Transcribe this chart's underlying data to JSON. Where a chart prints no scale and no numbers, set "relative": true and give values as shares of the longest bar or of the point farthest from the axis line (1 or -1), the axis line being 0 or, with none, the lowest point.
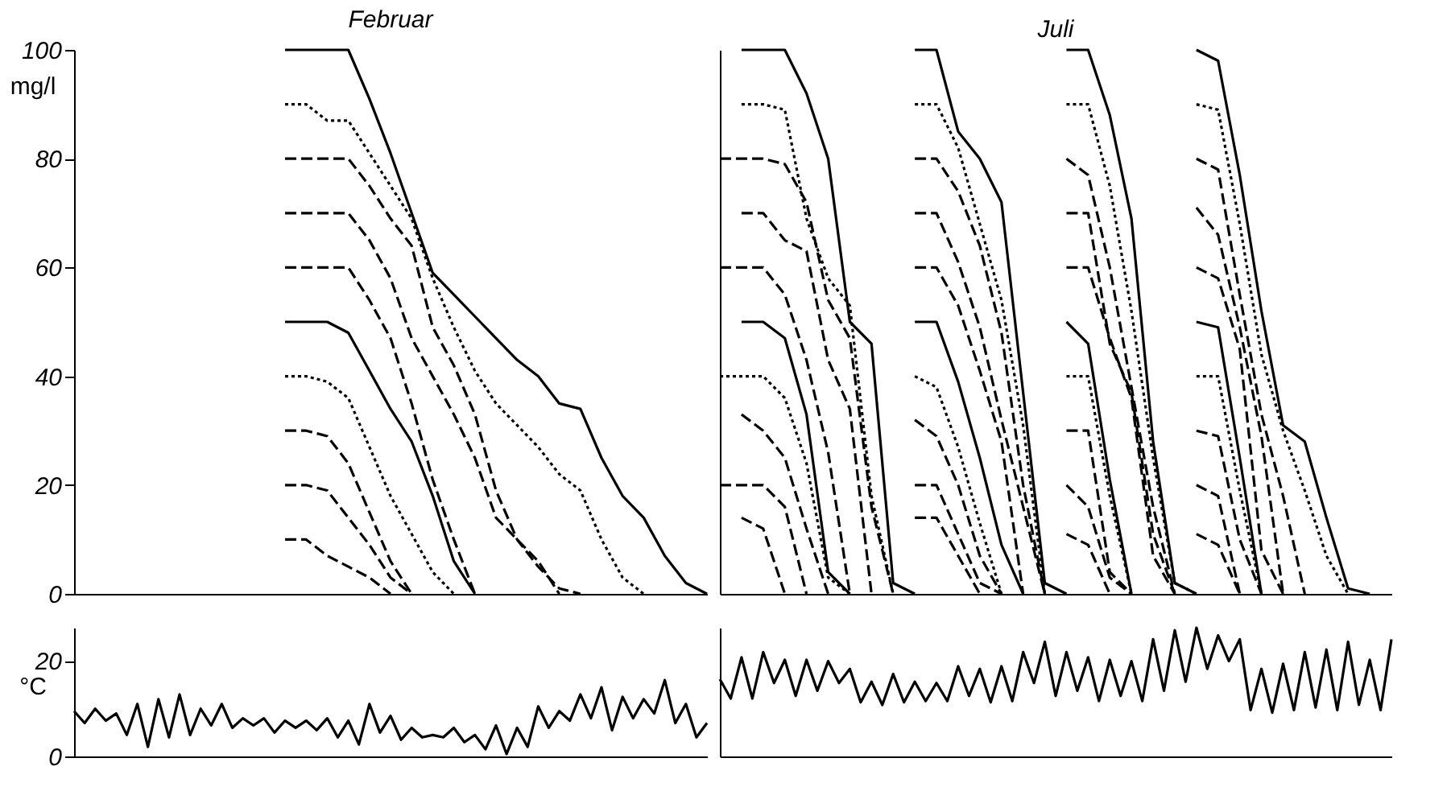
{
  "chart_data": [
    {
      "type": "line",
      "title": "Februar",
      "ylabel": "mg/l",
      "categories": [
        null,
        null,
        null,
        null,
        null,
        null,
        null,
        null,
        null,
        null,
        null,
        null,
        null,
        null,
        null,
        null,
        null,
        null,
        null,
        null,
        null,
        null,
        null,
        null,
        null,
        null,
        null,
        null,
        null,
        null,
        null
      ],
      "ylim": [
        0,
        100
      ],
      "yticks": [
        0,
        20,
        40,
        60,
        80,
        100
      ],
      "tick_labels": "y",
      "series": [
        {
          "color": "#000000",
          "line_style": "solid",
          "values": [
            null,
            null,
            null,
            null,
            null,
            null,
            null,
            null,
            null,
            null,
            100,
            100,
            100,
            100,
            91,
            81,
            70,
            59,
            55,
            51,
            47,
            43,
            40,
            35,
            34,
            25,
            18,
            14,
            7,
            2,
            0
          ]
        },
        {
          "color": "#000000",
          "line_style": "dotted",
          "values": [
            null,
            null,
            null,
            null,
            null,
            null,
            null,
            null,
            null,
            null,
            90,
            90,
            87,
            87,
            81,
            75,
            69,
            58,
            49,
            41,
            35,
            31,
            27,
            22,
            19,
            10,
            3,
            0,
            null,
            null,
            null
          ]
        },
        {
          "color": "#000000",
          "line_style": "dashed",
          "values": [
            null,
            null,
            null,
            null,
            null,
            null,
            null,
            null,
            null,
            null,
            80,
            80,
            80,
            80,
            75,
            69,
            64,
            49,
            42,
            33,
            19,
            10,
            5,
            1,
            0,
            null,
            null,
            null,
            null,
            null,
            null
          ]
        },
        {
          "color": "#000000",
          "line_style": "dashed",
          "values": [
            null,
            null,
            null,
            null,
            null,
            null,
            null,
            null,
            null,
            null,
            70,
            70,
            70,
            70,
            65,
            58,
            47,
            40,
            33,
            25,
            14,
            10,
            6,
            0,
            null,
            null,
            null,
            null,
            null,
            null,
            null
          ]
        },
        {
          "color": "#000000",
          "line_style": "dashed",
          "values": [
            null,
            null,
            null,
            null,
            null,
            null,
            null,
            null,
            null,
            null,
            60,
            60,
            60,
            60,
            54,
            47,
            35,
            21,
            10,
            0,
            null,
            null,
            null,
            null,
            null,
            null,
            null,
            null,
            null,
            null,
            null
          ]
        },
        {
          "color": "#000000",
          "line_style": "solid",
          "values": [
            null,
            null,
            null,
            null,
            null,
            null,
            null,
            null,
            null,
            null,
            50,
            50,
            50,
            48,
            41,
            34,
            28,
            18,
            6,
            0,
            null,
            null,
            null,
            null,
            null,
            null,
            null,
            null,
            null,
            null,
            null
          ]
        },
        {
          "color": "#000000",
          "line_style": "dotted",
          "values": [
            null,
            null,
            null,
            null,
            null,
            null,
            null,
            null,
            null,
            null,
            40,
            40,
            39,
            36,
            27,
            18,
            11,
            4,
            0,
            null,
            null,
            null,
            null,
            null,
            null,
            null,
            null,
            null,
            null,
            null,
            null
          ]
        },
        {
          "color": "#000000",
          "line_style": "dashed",
          "values": [
            null,
            null,
            null,
            null,
            null,
            null,
            null,
            null,
            null,
            null,
            30,
            30,
            29,
            24,
            15,
            6,
            0,
            null,
            null,
            null,
            null,
            null,
            null,
            null,
            null,
            null,
            null,
            null,
            null,
            null,
            null
          ]
        },
        {
          "color": "#000000",
          "line_style": "dashed",
          "values": [
            null,
            null,
            null,
            null,
            null,
            null,
            null,
            null,
            null,
            null,
            20,
            20,
            19,
            14,
            9,
            3,
            0,
            null,
            null,
            null,
            null,
            null,
            null,
            null,
            null,
            null,
            null,
            null,
            null,
            null,
            null
          ]
        },
        {
          "color": "#000000",
          "line_style": "dashed",
          "values": [
            null,
            null,
            null,
            null,
            null,
            null,
            null,
            null,
            null,
            null,
            10,
            10,
            7,
            5,
            3,
            0,
            null,
            null,
            null,
            null,
            null,
            null,
            null,
            null,
            null,
            null,
            null,
            null,
            null,
            null,
            null
          ]
        }
      ]
    },
    {
      "type": "line",
      "title": "Juli",
      "relative": true,
      "categories": [
        null,
        null,
        null,
        null,
        null,
        null,
        null,
        null,
        null,
        null,
        null,
        null,
        null,
        null,
        null,
        null,
        null,
        null,
        null,
        null,
        null,
        null,
        null,
        null,
        null,
        null,
        null,
        null,
        null,
        null,
        null,
        null
      ],
      "tick_labels": false,
      "series": [
        {
          "color": "#000000",
          "line_style": "solid",
          "values": [
            null,
            1,
            1,
            1,
            0.92,
            0.8,
            0.5,
            0.46,
            0.02,
            0,
            null,
            null,
            null,
            null,
            null,
            null,
            null,
            null,
            null,
            null,
            null,
            null,
            null,
            null,
            null,
            null,
            null,
            null,
            null,
            null,
            null,
            null
          ]
        },
        {
          "color": "#000000",
          "line_style": "dotted",
          "values": [
            null,
            0.9,
            0.9,
            0.89,
            0.69,
            0.58,
            0.53,
            0.18,
            0,
            null,
            null,
            null,
            null,
            null,
            null,
            null,
            null,
            null,
            null,
            null,
            null,
            null,
            null,
            null,
            null,
            null,
            null,
            null,
            null,
            null,
            null,
            null
          ]
        },
        {
          "color": "#000000",
          "line_style": "dashed",
          "values": [
            0.8,
            0.8,
            0.8,
            0.79,
            0.72,
            0.54,
            0.47,
            0.16,
            0,
            null,
            null,
            null,
            null,
            null,
            null,
            null,
            null,
            null,
            null,
            null,
            null,
            null,
            null,
            null,
            null,
            null,
            null,
            null,
            null,
            null,
            null,
            null
          ]
        },
        {
          "color": "#000000",
          "line_style": "dashed",
          "values": [
            null,
            0.7,
            0.7,
            0.65,
            0.63,
            0.43,
            0.34,
            0,
            null,
            null,
            null,
            null,
            null,
            null,
            null,
            null,
            null,
            null,
            null,
            null,
            null,
            null,
            null,
            null,
            null,
            null,
            null,
            null,
            null,
            null,
            null,
            null
          ]
        },
        {
          "color": "#000000",
          "line_style": "dashed",
          "values": [
            0.6,
            0.6,
            0.6,
            0.55,
            0.43,
            0.26,
            0,
            null,
            null,
            null,
            null,
            null,
            null,
            null,
            null,
            null,
            null,
            null,
            null,
            null,
            null,
            null,
            null,
            null,
            null,
            null,
            null,
            null,
            null,
            null,
            null,
            null
          ]
        },
        {
          "color": "#000000",
          "line_style": "solid",
          "values": [
            null,
            0.5,
            0.5,
            0.47,
            0.33,
            0.04,
            0,
            null,
            null,
            null,
            null,
            null,
            null,
            null,
            null,
            null,
            null,
            null,
            null,
            null,
            null,
            null,
            null,
            null,
            null,
            null,
            null,
            null,
            null,
            null,
            null,
            null
          ]
        },
        {
          "color": "#000000",
          "line_style": "dotted",
          "values": [
            0.4,
            0.4,
            0.4,
            0.36,
            0.24,
            0.03,
            0,
            null,
            null,
            null,
            null,
            null,
            null,
            null,
            null,
            null,
            null,
            null,
            null,
            null,
            null,
            null,
            null,
            null,
            null,
            null,
            null,
            null,
            null,
            null,
            null,
            null
          ]
        },
        {
          "color": "#000000",
          "line_style": "dashed",
          "values": [
            null,
            0.33,
            0.3,
            0.25,
            0.12,
            0,
            null,
            null,
            null,
            null,
            null,
            null,
            null,
            null,
            null,
            null,
            null,
            null,
            null,
            null,
            null,
            null,
            null,
            null,
            null,
            null,
            null,
            null,
            null,
            null,
            null,
            null
          ]
        },
        {
          "color": "#000000",
          "line_style": "dashed",
          "values": [
            0.2,
            0.2,
            0.2,
            0.16,
            0,
            null,
            null,
            null,
            null,
            null,
            null,
            null,
            null,
            null,
            null,
            null,
            null,
            null,
            null,
            null,
            null,
            null,
            null,
            null,
            null,
            null,
            null,
            null,
            null,
            null,
            null,
            null
          ]
        },
        {
          "color": "#000000",
          "line_style": "dashed",
          "values": [
            null,
            0.14,
            0.12,
            0,
            null,
            null,
            null,
            null,
            null,
            null,
            null,
            null,
            null,
            null,
            null,
            null,
            null,
            null,
            null,
            null,
            null,
            null,
            null,
            null,
            null,
            null,
            null,
            null,
            null,
            null,
            null,
            null
          ]
        },
        {
          "color": "#000000",
          "line_style": "solid",
          "values": [
            null,
            null,
            null,
            null,
            null,
            null,
            null,
            null,
            null,
            1,
            1,
            0.85,
            0.8,
            0.72,
            0.37,
            0.02,
            0,
            null,
            null,
            null,
            null,
            null,
            null,
            null,
            null,
            null,
            null,
            null,
            null,
            null,
            null,
            null
          ]
        },
        {
          "color": "#000000",
          "line_style": "dotted",
          "values": [
            null,
            null,
            null,
            null,
            null,
            null,
            null,
            null,
            null,
            0.9,
            0.9,
            0.82,
            0.68,
            0.54,
            0.31,
            0,
            null,
            null,
            null,
            null,
            null,
            null,
            null,
            null,
            null,
            null,
            null,
            null,
            null,
            null,
            null,
            null
          ]
        },
        {
          "color": "#000000",
          "line_style": "dashed",
          "values": [
            null,
            null,
            null,
            null,
            null,
            null,
            null,
            null,
            null,
            0.8,
            0.8,
            0.74,
            0.64,
            0.48,
            0.2,
            0,
            null,
            null,
            null,
            null,
            null,
            null,
            null,
            null,
            null,
            null,
            null,
            null,
            null,
            null,
            null,
            null
          ]
        },
        {
          "color": "#000000",
          "line_style": "dashed",
          "values": [
            null,
            null,
            null,
            null,
            null,
            null,
            null,
            null,
            null,
            0.7,
            0.7,
            0.61,
            0.49,
            0.32,
            0.16,
            0,
            null,
            null,
            null,
            null,
            null,
            null,
            null,
            null,
            null,
            null,
            null,
            null,
            null,
            null,
            null,
            null
          ]
        },
        {
          "color": "#000000",
          "line_style": "dashed",
          "values": [
            null,
            null,
            null,
            null,
            null,
            null,
            null,
            null,
            null,
            0.6,
            0.6,
            0.53,
            0.41,
            0.28,
            0,
            null,
            null,
            null,
            null,
            null,
            null,
            null,
            null,
            null,
            null,
            null,
            null,
            null,
            null,
            null,
            null,
            null
          ]
        },
        {
          "color": "#000000",
          "line_style": "solid",
          "values": [
            null,
            null,
            null,
            null,
            null,
            null,
            null,
            null,
            null,
            0.5,
            0.5,
            0.39,
            0.25,
            0.09,
            0,
            null,
            null,
            null,
            null,
            null,
            null,
            null,
            null,
            null,
            null,
            null,
            null,
            null,
            null,
            null,
            null,
            null
          ]
        },
        {
          "color": "#000000",
          "line_style": "dotted",
          "values": [
            null,
            null,
            null,
            null,
            null,
            null,
            null,
            null,
            null,
            0.4,
            0.38,
            0.27,
            0.13,
            0,
            null,
            null,
            null,
            null,
            null,
            null,
            null,
            null,
            null,
            null,
            null,
            null,
            null,
            null,
            null,
            null,
            null,
            null
          ]
        },
        {
          "color": "#000000",
          "line_style": "dashed",
          "values": [
            null,
            null,
            null,
            null,
            null,
            null,
            null,
            null,
            null,
            0.32,
            0.29,
            0.2,
            0.07,
            0,
            null,
            null,
            null,
            null,
            null,
            null,
            null,
            null,
            null,
            null,
            null,
            null,
            null,
            null,
            null,
            null,
            null,
            null
          ]
        },
        {
          "color": "#000000",
          "line_style": "dashed",
          "values": [
            null,
            null,
            null,
            null,
            null,
            null,
            null,
            null,
            null,
            0.2,
            0.2,
            0.11,
            0.02,
            0,
            null,
            null,
            null,
            null,
            null,
            null,
            null,
            null,
            null,
            null,
            null,
            null,
            null,
            null,
            null,
            null,
            null,
            null
          ]
        },
        {
          "color": "#000000",
          "line_style": "dashed",
          "values": [
            null,
            null,
            null,
            null,
            null,
            null,
            null,
            null,
            null,
            0.14,
            0.14,
            0.07,
            0,
            null,
            null,
            null,
            null,
            null,
            null,
            null,
            null,
            null,
            null,
            null,
            null,
            null,
            null,
            null,
            null,
            null,
            null,
            null
          ]
        },
        {
          "color": "#000000",
          "line_style": "solid",
          "values": [
            null,
            null,
            null,
            null,
            null,
            null,
            null,
            null,
            null,
            null,
            null,
            null,
            null,
            null,
            null,
            null,
            1,
            1,
            0.88,
            0.69,
            0.28,
            0.02,
            0,
            null,
            null,
            null,
            null,
            null,
            null,
            null,
            null,
            null
          ]
        },
        {
          "color": "#000000",
          "line_style": "dotted",
          "values": [
            null,
            null,
            null,
            null,
            null,
            null,
            null,
            null,
            null,
            null,
            null,
            null,
            null,
            null,
            null,
            null,
            0.9,
            0.9,
            0.75,
            0.52,
            0.25,
            0.02,
            0,
            null,
            null,
            null,
            null,
            null,
            null,
            null,
            null,
            null
          ]
        },
        {
          "color": "#000000",
          "line_style": "dashed",
          "values": [
            null,
            null,
            null,
            null,
            null,
            null,
            null,
            null,
            null,
            null,
            null,
            null,
            null,
            null,
            null,
            null,
            0.8,
            0.77,
            0.6,
            0.38,
            0.16,
            0,
            null,
            null,
            null,
            null,
            null,
            null,
            null,
            null,
            null,
            null
          ]
        },
        {
          "color": "#000000",
          "line_style": "dashed",
          "values": [
            null,
            null,
            null,
            null,
            null,
            null,
            null,
            null,
            null,
            null,
            null,
            null,
            null,
            null,
            null,
            null,
            0.7,
            0.7,
            0.46,
            0.37,
            0.11,
            0,
            null,
            null,
            null,
            null,
            null,
            null,
            null,
            null,
            null,
            null
          ]
        },
        {
          "color": "#000000",
          "line_style": "dashed",
          "values": [
            null,
            null,
            null,
            null,
            null,
            null,
            null,
            null,
            null,
            null,
            null,
            null,
            null,
            null,
            null,
            null,
            0.6,
            0.6,
            0.47,
            0.36,
            0.07,
            0,
            null,
            null,
            null,
            null,
            null,
            null,
            null,
            null,
            null,
            null
          ]
        },
        {
          "color": "#000000",
          "line_style": "solid",
          "values": [
            null,
            null,
            null,
            null,
            null,
            null,
            null,
            null,
            null,
            null,
            null,
            null,
            null,
            null,
            null,
            null,
            0.5,
            0.46,
            0.21,
            0,
            null,
            null,
            null,
            null,
            null,
            null,
            null,
            null,
            null,
            null,
            null,
            null
          ]
        },
        {
          "color": "#000000",
          "line_style": "dotted",
          "values": [
            null,
            null,
            null,
            null,
            null,
            null,
            null,
            null,
            null,
            null,
            null,
            null,
            null,
            null,
            null,
            null,
            0.4,
            0.4,
            0.18,
            0,
            null,
            null,
            null,
            null,
            null,
            null,
            null,
            null,
            null,
            null,
            null,
            null
          ]
        },
        {
          "color": "#000000",
          "line_style": "dashed",
          "values": [
            null,
            null,
            null,
            null,
            null,
            null,
            null,
            null,
            null,
            null,
            null,
            null,
            null,
            null,
            null,
            null,
            0.3,
            0.3,
            0.04,
            0,
            null,
            null,
            null,
            null,
            null,
            null,
            null,
            null,
            null,
            null,
            null,
            null
          ]
        },
        {
          "color": "#000000",
          "line_style": "dashed",
          "values": [
            null,
            null,
            null,
            null,
            null,
            null,
            null,
            null,
            null,
            null,
            null,
            null,
            null,
            null,
            null,
            null,
            0.2,
            0.16,
            0.03,
            0,
            null,
            null,
            null,
            null,
            null,
            null,
            null,
            null,
            null,
            null,
            null,
            null
          ]
        },
        {
          "color": "#000000",
          "line_style": "dashed",
          "values": [
            null,
            null,
            null,
            null,
            null,
            null,
            null,
            null,
            null,
            null,
            null,
            null,
            null,
            null,
            null,
            null,
            0.11,
            0.09,
            0,
            null,
            null,
            null,
            null,
            null,
            null,
            null,
            null,
            null,
            null,
            null,
            null,
            null
          ]
        },
        {
          "color": "#000000",
          "line_style": "solid",
          "values": [
            null,
            null,
            null,
            null,
            null,
            null,
            null,
            null,
            null,
            null,
            null,
            null,
            null,
            null,
            null,
            null,
            null,
            null,
            null,
            null,
            null,
            null,
            1,
            0.98,
            0.77,
            0.52,
            0.31,
            0.28,
            0.14,
            0.01,
            0,
            null
          ]
        },
        {
          "color": "#000000",
          "line_style": "dotted",
          "values": [
            null,
            null,
            null,
            null,
            null,
            null,
            null,
            null,
            null,
            null,
            null,
            null,
            null,
            null,
            null,
            null,
            null,
            null,
            null,
            null,
            null,
            null,
            0.9,
            0.89,
            0.68,
            0.44,
            0.3,
            0.19,
            0.07,
            0,
            null,
            null
          ]
        },
        {
          "color": "#000000",
          "line_style": "dashed",
          "values": [
            null,
            null,
            null,
            null,
            null,
            null,
            null,
            null,
            null,
            null,
            null,
            null,
            null,
            null,
            null,
            null,
            null,
            null,
            null,
            null,
            null,
            null,
            0.8,
            0.78,
            0.55,
            0.33,
            0.18,
            0,
            null,
            null,
            null,
            null
          ]
        },
        {
          "color": "#000000",
          "line_style": "dashed",
          "values": [
            null,
            null,
            null,
            null,
            null,
            null,
            null,
            null,
            null,
            null,
            null,
            null,
            null,
            null,
            null,
            null,
            null,
            null,
            null,
            null,
            null,
            null,
            0.71,
            0.66,
            0.49,
            0.29,
            0,
            null,
            null,
            null,
            null,
            null
          ]
        },
        {
          "color": "#000000",
          "line_style": "dashed",
          "values": [
            null,
            null,
            null,
            null,
            null,
            null,
            null,
            null,
            null,
            null,
            null,
            null,
            null,
            null,
            null,
            null,
            null,
            null,
            null,
            null,
            null,
            null,
            0.6,
            0.58,
            0.45,
            0.08,
            0,
            null,
            null,
            null,
            null,
            null
          ]
        },
        {
          "color": "#000000",
          "line_style": "solid",
          "values": [
            null,
            null,
            null,
            null,
            null,
            null,
            null,
            null,
            null,
            null,
            null,
            null,
            null,
            null,
            null,
            null,
            null,
            null,
            null,
            null,
            null,
            null,
            0.5,
            0.49,
            0.25,
            0,
            null,
            null,
            null,
            null,
            null,
            null
          ]
        },
        {
          "color": "#000000",
          "line_style": "dotted",
          "values": [
            null,
            null,
            null,
            null,
            null,
            null,
            null,
            null,
            null,
            null,
            null,
            null,
            null,
            null,
            null,
            null,
            null,
            null,
            null,
            null,
            null,
            null,
            0.4,
            0.4,
            0.19,
            0,
            null,
            null,
            null,
            null,
            null,
            null
          ]
        },
        {
          "color": "#000000",
          "line_style": "dashed",
          "values": [
            null,
            null,
            null,
            null,
            null,
            null,
            null,
            null,
            null,
            null,
            null,
            null,
            null,
            null,
            null,
            null,
            null,
            null,
            null,
            null,
            null,
            null,
            0.3,
            0.29,
            0.1,
            0,
            null,
            null,
            null,
            null,
            null,
            null
          ]
        },
        {
          "color": "#000000",
          "line_style": "dashed",
          "values": [
            null,
            null,
            null,
            null,
            null,
            null,
            null,
            null,
            null,
            null,
            null,
            null,
            null,
            null,
            null,
            null,
            null,
            null,
            null,
            null,
            null,
            null,
            0.2,
            0.18,
            0,
            null,
            null,
            null,
            null,
            null,
            null,
            null
          ]
        },
        {
          "color": "#000000",
          "line_style": "dashed",
          "values": [
            null,
            null,
            null,
            null,
            null,
            null,
            null,
            null,
            null,
            null,
            null,
            null,
            null,
            null,
            null,
            null,
            null,
            null,
            null,
            null,
            null,
            null,
            0.11,
            0.09,
            0,
            null,
            null,
            null,
            null,
            null,
            null,
            null
          ]
        }
      ]
    },
    {
      "type": "line",
      "ylabel": "°C",
      "categories": [
        null,
        null,
        null,
        null,
        null,
        null,
        null,
        null,
        null,
        null,
        null,
        null,
        null,
        null,
        null,
        null,
        null,
        null,
        null,
        null,
        null,
        null,
        null,
        null,
        null,
        null,
        null,
        null,
        null,
        null,
        null,
        null,
        null,
        null,
        null,
        null,
        null,
        null,
        null,
        null,
        null,
        null,
        null,
        null,
        null,
        null,
        null,
        null,
        null,
        null,
        null,
        null,
        null,
        null,
        null,
        null,
        null,
        null,
        null,
        null,
        null
      ],
      "ylim": [
        0,
        27
      ],
      "yticks": [
        0,
        20
      ],
      "tick_labels": "y",
      "series": [
        {
          "color": "#000000",
          "line_style": "solid",
          "values": [
            9.5,
            7,
            10,
            7.5,
            9,
            4.5,
            11,
            2,
            12,
            4,
            13,
            4.5,
            10,
            6.5,
            11,
            6,
            8,
            6.5,
            8,
            5,
            7.5,
            6,
            7.5,
            5.5,
            8,
            4,
            7.5,
            2.5,
            11,
            5,
            8.5,
            3.5,
            6,
            4,
            4.5,
            4,
            6,
            3,
            4.5,
            1.5,
            6.5,
            0.5,
            6,
            2,
            10.5,
            6,
            9.5,
            7.5,
            13,
            8,
            14.5,
            5.5,
            12.5,
            8,
            12,
            9,
            16,
            7,
            11,
            4,
            7
          ]
        }
      ]
    },
    {
      "type": "line",
      "categories": [
        null,
        null,
        null,
        null,
        null,
        null,
        null,
        null,
        null,
        null,
        null,
        null,
        null,
        null,
        null,
        null,
        null,
        null,
        null,
        null,
        null,
        null,
        null,
        null,
        null,
        null,
        null,
        null,
        null,
        null,
        null,
        null,
        null,
        null,
        null,
        null,
        null,
        null,
        null,
        null,
        null,
        null,
        null,
        null,
        null,
        null,
        null,
        null,
        null,
        null,
        null,
        null,
        null,
        null,
        null,
        null,
        null,
        null,
        null,
        null,
        null,
        null,
        null
      ],
      "relative": true,
      "tick_labels": false,
      "series": [
        {
          "color": "#000000",
          "line_style": "solid",
          "values": [
            0.6,
            0.45,
            0.77,
            0.45,
            0.81,
            0.57,
            0.75,
            0.47,
            0.75,
            0.51,
            0.74,
            0.57,
            0.68,
            0.42,
            0.58,
            0.4,
            0.64,
            0.42,
            0.58,
            0.43,
            0.57,
            0.43,
            0.7,
            0.47,
            0.68,
            0.42,
            0.7,
            0.43,
            0.81,
            0.57,
            0.89,
            0.47,
            0.81,
            0.51,
            0.77,
            0.43,
            0.75,
            0.47,
            0.74,
            0.43,
            0.91,
            0.51,
            0.98,
            0.58,
            1,
            0.68,
            0.94,
            0.74,
            0.91,
            0.36,
            0.68,
            0.34,
            0.72,
            0.36,
            0.81,
            0.38,
            0.83,
            0.36,
            0.89,
            0.4,
            0.75,
            0.36,
            0.91
          ]
        }
      ]
    }
  ]
}
